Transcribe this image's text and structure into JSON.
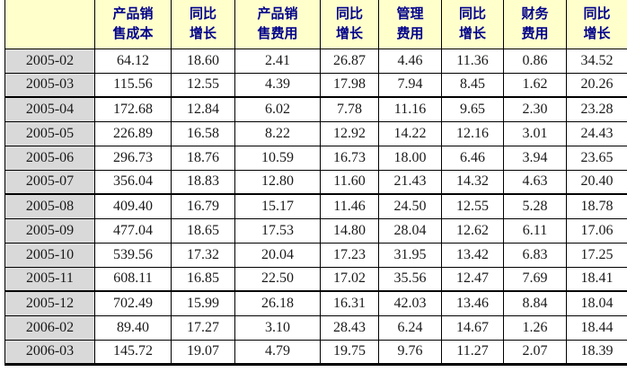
{
  "chart_data": {
    "type": "table",
    "columns": [
      "",
      "产品销售成本",
      "同比增长",
      "产品销售费用",
      "同比增长",
      "管理费用",
      "同比增长",
      "财务费用",
      "同比增长"
    ],
    "header_cells": [
      "",
      "产品销\n售成本",
      "同比\n增长",
      "产品销\n售费用",
      "同比\n增长",
      "管理\n费用",
      "同比\n增长",
      "财务\n费用",
      "同比\n增长"
    ],
    "rows": [
      {
        "label": "2005-02",
        "values": [
          "64.12",
          "18.60",
          "2.41",
          "26.87",
          "4.46",
          "11.36",
          "0.86",
          "34.52"
        ]
      },
      {
        "label": "2005-03",
        "values": [
          "115.56",
          "12.55",
          "4.39",
          "17.98",
          "7.94",
          "8.45",
          "1.62",
          "20.26"
        ]
      },
      {
        "label": "2005-04",
        "values": [
          "172.68",
          "12.84",
          "6.02",
          "7.78",
          "11.16",
          "9.65",
          "2.30",
          "23.28"
        ]
      },
      {
        "label": "2005-05",
        "values": [
          "226.89",
          "16.58",
          "8.22",
          "12.92",
          "14.22",
          "12.16",
          "3.01",
          "24.43"
        ]
      },
      {
        "label": "2005-06",
        "values": [
          "296.73",
          "18.76",
          "10.59",
          "16.73",
          "18.00",
          "6.46",
          "3.94",
          "23.65"
        ]
      },
      {
        "label": "2005-07",
        "values": [
          "356.04",
          "18.83",
          "12.80",
          "11.60",
          "21.43",
          "14.32",
          "4.63",
          "20.40"
        ]
      },
      {
        "label": "2005-08",
        "values": [
          "409.40",
          "16.79",
          "15.17",
          "11.46",
          "24.50",
          "12.55",
          "5.28",
          "18.78"
        ]
      },
      {
        "label": "2005-09",
        "values": [
          "477.04",
          "18.65",
          "17.53",
          "14.80",
          "28.04",
          "12.62",
          "6.11",
          "17.06"
        ]
      },
      {
        "label": "2005-10",
        "values": [
          "539.56",
          "17.32",
          "20.04",
          "17.23",
          "31.95",
          "13.42",
          "6.83",
          "17.25"
        ]
      },
      {
        "label": "2005-11",
        "values": [
          "608.11",
          "16.85",
          "22.50",
          "17.02",
          "35.56",
          "12.47",
          "7.69",
          "18.41"
        ]
      },
      {
        "label": "2005-12",
        "values": [
          "702.49",
          "15.99",
          "26.18",
          "16.31",
          "42.03",
          "13.46",
          "8.84",
          "18.04"
        ]
      },
      {
        "label": "2006-02",
        "values": [
          "89.40",
          "17.27",
          "3.10",
          "28.43",
          "6.24",
          "14.67",
          "1.26",
          "18.44"
        ]
      },
      {
        "label": "2006-03",
        "values": [
          "145.72",
          "19.07",
          "4.79",
          "19.75",
          "9.76",
          "11.27",
          "2.07",
          "18.39"
        ]
      }
    ]
  },
  "colors": {
    "header_bg": "#FFFFCC",
    "header_text": "#00008B",
    "row_label_bg": "#D9D9D9",
    "cell_bg": "#FFFFFF",
    "border": "#000000",
    "value_text": "#1A1A1A"
  }
}
